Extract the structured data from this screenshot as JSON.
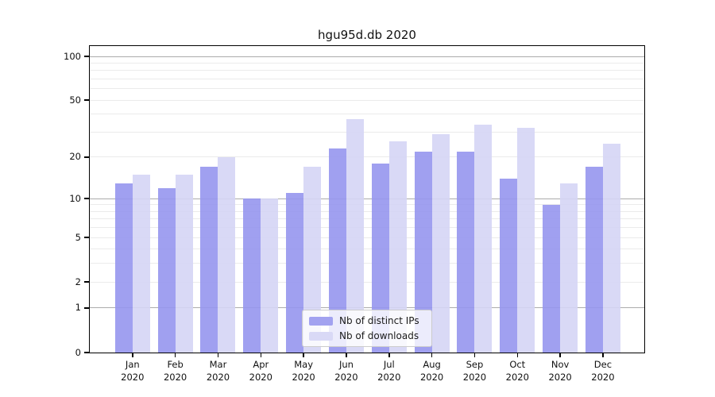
{
  "title": "hgu95d.db 2020",
  "chart_data": {
    "type": "bar",
    "title": "hgu95d.db 2020",
    "categories": [
      "Jan",
      "Feb",
      "Mar",
      "Apr",
      "May",
      "Jun",
      "Jul",
      "Aug",
      "Sep",
      "Oct",
      "Nov",
      "Dec"
    ],
    "xtick_year": "2020",
    "series": [
      {
        "name": "Nb of distinct IPs",
        "color": "rgba(150,150,238,0.9)",
        "legend_color": "#a2a2f0",
        "values": [
          13,
          12,
          17,
          10,
          11,
          23,
          18,
          22,
          22,
          14,
          9,
          17
        ]
      },
      {
        "name": "Nb of downloads",
        "color": "rgba(213,213,245,0.9)",
        "legend_color": "#d9d9f6",
        "values": [
          15,
          15,
          20,
          10,
          17,
          37,
          26,
          29,
          34,
          32,
          13,
          25
        ]
      }
    ],
    "yscale": "log1p",
    "ylim": [
      0,
      118
    ],
    "yticks": [
      0,
      1,
      2,
      5,
      10,
      20,
      50,
      100
    ],
    "major_gridlines": [
      1,
      10,
      100
    ],
    "minor_gridlines": [
      2,
      3,
      4,
      5,
      6,
      7,
      8,
      9,
      20,
      30,
      40,
      50,
      60,
      70,
      80,
      90
    ],
    "legend_position": "lower center",
    "grid": true
  },
  "colors": {
    "background": "#ffffff",
    "axis": "#000000",
    "major_grid": "#ababab",
    "minor_grid": "#ebebeb",
    "legend_border": "#cccccc"
  }
}
